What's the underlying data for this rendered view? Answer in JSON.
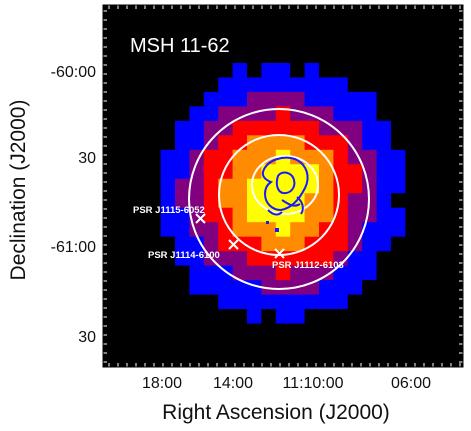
{
  "chart_data": {
    "type": "heatmap",
    "title": "MSH 11-62",
    "xlabel": "Right Ascension (J2000)",
    "ylabel": "Declination (J2000)",
    "x_tick_labels": [
      "18:00",
      "14:00",
      "11:10:00",
      "06:00"
    ],
    "y_tick_labels": [
      "-60:00",
      "30",
      "-61:00",
      "30"
    ],
    "colormap": [
      "#000000",
      "#0000ff",
      "#800080",
      "#ff0000",
      "#ff8c00",
      "#ffff00"
    ],
    "contour_colors": {
      "outer": "#ffffff",
      "inner": "#1a1aff"
    },
    "pulsars": [
      {
        "name": "PSR J1115-6052"
      },
      {
        "name": "PSR J1114-6100"
      },
      {
        "name": "PSR J1112-6103"
      }
    ],
    "grid": false
  }
}
